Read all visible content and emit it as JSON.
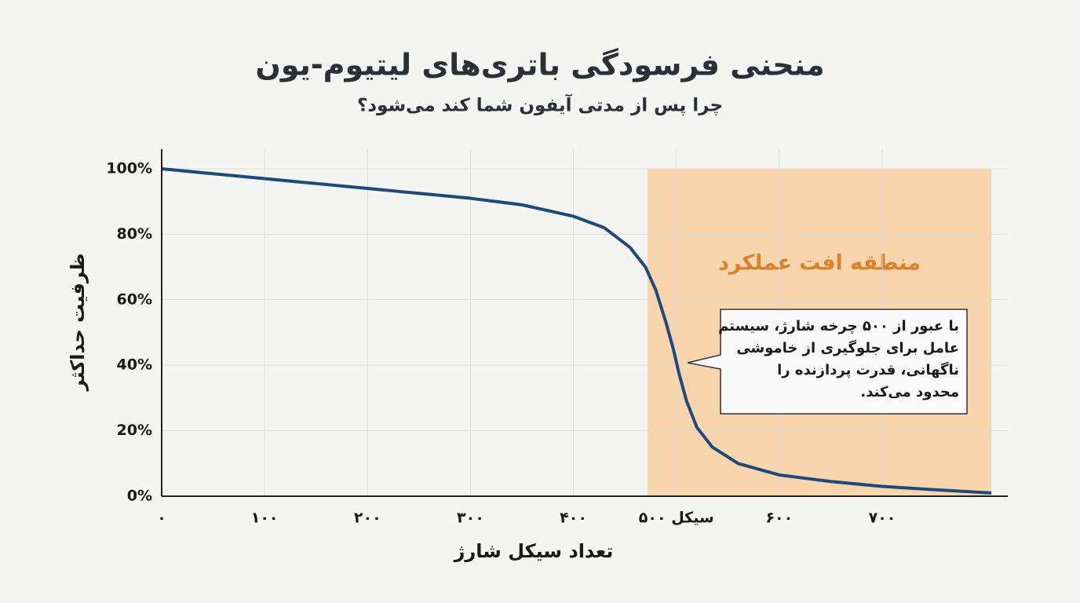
{
  "chart_data": {
    "type": "line",
    "title": "منحنی فرسودگی باتری‌های لیتیوم-یون",
    "subtitle": "چرا پس از مدتی آیفون شما کند می‌شود؟",
    "x_label": "تعداد سیکل شارژ",
    "y_label": "ظرفیت حداکثر",
    "x": [
      0,
      50,
      100,
      150,
      200,
      250,
      300,
      350,
      400,
      430,
      455,
      470,
      480,
      490,
      497,
      503,
      510,
      520,
      535,
      560,
      600,
      650,
      700,
      750,
      806
    ],
    "series": [
      {
        "color": "#1d4a78",
        "values": [
          100,
          98.5,
          97,
          95.5,
          94,
          92.5,
          91,
          89,
          85.5,
          82,
          76,
          70,
          63,
          53,
          45,
          37,
          29,
          21,
          15,
          10,
          6.5,
          4.5,
          3,
          2,
          1
        ]
      }
    ],
    "xlim": [
      0,
      822
    ],
    "ylim": [
      0,
      106
    ],
    "xticks": [
      {
        "value": 0,
        "label": "۰"
      },
      {
        "value": 100,
        "label": "۱۰۰"
      },
      {
        "value": 200,
        "label": "۲۰۰"
      },
      {
        "value": 300,
        "label": "۳۰۰"
      },
      {
        "value": 400,
        "label": "۴۰۰"
      },
      {
        "value": 500,
        "label": "۵۰۰ سیکل"
      },
      {
        "value": 600,
        "label": "۶۰۰"
      },
      {
        "value": 700,
        "label": "۷۰۰"
      }
    ],
    "yticks": [
      {
        "value": 0,
        "label": "0%"
      },
      {
        "value": 20,
        "label": "20%"
      },
      {
        "value": 40,
        "label": "40%"
      },
      {
        "value": 60,
        "label": "60%"
      },
      {
        "value": 80,
        "label": "80%"
      },
      {
        "value": 100,
        "label": "100%"
      }
    ],
    "grid": true,
    "highlight": {
      "label": "منطقه افت عملکرد",
      "x": [
        472,
        806
      ],
      "top": 100,
      "color": "#f9d5ad",
      "label_color": "#d9822b"
    },
    "annotation": {
      "lines": [
        "با عبور از ۵۰۰ چرخه شارژ، سیستم",
        "عامل برای جلوگیری از خاموشی",
        "ناگهانی، قدرت پردازنده را",
        "محدود می‌کند."
      ]
    }
  }
}
